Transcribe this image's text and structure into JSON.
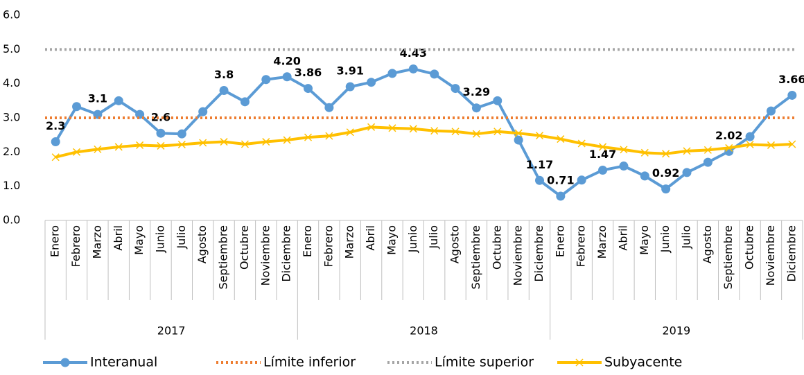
{
  "chart_data": {
    "type": "line",
    "categories": [
      "Enero",
      "Febrero",
      "Marzo",
      "Abril",
      "Mayo",
      "Junio",
      "Julio",
      "Agosto",
      "Septiembre",
      "Octubre",
      "Noviembre",
      "Diciembre",
      "Enero",
      "Febrero",
      "Marzo",
      "Abril",
      "Mayo",
      "Junio",
      "Julio",
      "Agosto",
      "Septiembre",
      "Octubre",
      "Noviembre",
      "Diciembre",
      "Enero",
      "Febrero",
      "Marzo",
      "Abril",
      "Mayo",
      "Junio",
      "Julio",
      "Agosto",
      "Septiembre",
      "Octubre",
      "Noviembre",
      "Diciembre"
    ],
    "groups": [
      "2017",
      "2018",
      "2019"
    ],
    "ylim": [
      0,
      6
    ],
    "yticks": [
      {
        "value": 0,
        "label": "0.0"
      },
      {
        "value": 1,
        "label": "1.0"
      },
      {
        "value": 2,
        "label": "2.0"
      },
      {
        "value": 3,
        "label": "3.0"
      },
      {
        "value": 4,
        "label": "4.0"
      },
      {
        "value": 5,
        "label": "5.0"
      },
      {
        "value": 6,
        "label": "6.0"
      }
    ],
    "legend": "bottom",
    "series": [
      {
        "name": "Interanual",
        "color": "#5b9bd5",
        "marker": "circle",
        "values": [
          2.3,
          3.33,
          3.1,
          3.5,
          3.1,
          2.55,
          2.53,
          3.18,
          3.8,
          3.47,
          4.12,
          4.2,
          3.86,
          3.3,
          3.91,
          4.04,
          4.3,
          4.43,
          4.28,
          3.86,
          3.29,
          3.5,
          2.35,
          1.17,
          0.71,
          1.18,
          1.47,
          1.59,
          1.3,
          0.92,
          1.4,
          1.7,
          2.02,
          2.45,
          3.2,
          3.66
        ],
        "value_labels": [
          "2.3",
          null,
          "3.1",
          null,
          null,
          "2.6",
          null,
          null,
          "3.8",
          null,
          null,
          "4.20",
          "3.86",
          null,
          "3.91",
          null,
          null,
          "4.43",
          null,
          null,
          "3.29",
          null,
          null,
          "1.17",
          "0.71",
          null,
          "1.47",
          null,
          null,
          "0.92",
          null,
          null,
          "2.02",
          null,
          null,
          "3.66"
        ]
      },
      {
        "name": "Límite inferior",
        "color": "#ed7d31",
        "style": "dotted",
        "value": 3
      },
      {
        "name": "Límite superior",
        "color": "#a5a5a5",
        "style": "dotted",
        "value": 5
      },
      {
        "name": "Subyacente",
        "color": "#ffc000",
        "marker": "x",
        "values": [
          1.85,
          2.0,
          2.08,
          2.15,
          2.2,
          2.18,
          2.22,
          2.27,
          2.3,
          2.23,
          2.3,
          2.35,
          2.43,
          2.47,
          2.58,
          2.73,
          2.7,
          2.68,
          2.62,
          2.6,
          2.53,
          2.6,
          2.55,
          2.48,
          2.38,
          2.25,
          2.15,
          2.07,
          1.98,
          1.95,
          2.03,
          2.06,
          2.12,
          2.22,
          2.2,
          2.23
        ]
      }
    ]
  }
}
